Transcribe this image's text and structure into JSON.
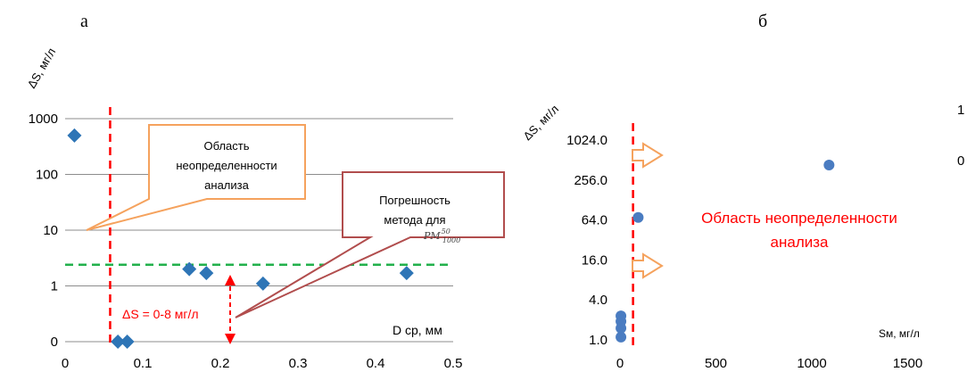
{
  "panels": {
    "a": "а",
    "b": "б"
  },
  "chart_data": [
    {
      "type": "scatter",
      "panel": "а",
      "xlabel": "D ср, мм",
      "ylabel": "ΔS, мг/л",
      "x_ticks": [
        "0",
        "0.1",
        "0.2",
        "0.3",
        "0.4",
        "0.5"
      ],
      "y_ticks": [
        "0",
        "1",
        "10",
        "100",
        "1000"
      ],
      "xlim": [
        0,
        0.5
      ],
      "y_scale": "log",
      "grid": "horizontal",
      "marker": "diamond",
      "color": "#2e75b6",
      "points": [
        {
          "x": 0.012,
          "y": 500
        },
        {
          "x": 0.068,
          "y": 0.1
        },
        {
          "x": 0.08,
          "y": 0.1
        },
        {
          "x": 0.16,
          "y": 2.0
        },
        {
          "x": 0.182,
          "y": 1.7
        },
        {
          "x": 0.255,
          "y": 1.1
        },
        {
          "x": 0.44,
          "y": 1.7
        }
      ],
      "vline_x": 0.058,
      "hline_y": 2.4,
      "callout_orange": [
        "Область",
        "неопределенности",
        "анализа"
      ],
      "callout_red": [
        "Погрешность",
        "метода для"
      ],
      "formula": {
        "base": "PM",
        "sup": "50",
        "sub": "1000"
      },
      "range_label": "ΔS = 0-8 мг/л"
    },
    {
      "type": "scatter",
      "panel": "б",
      "xlabel": "Sм, мг/л",
      "ylabel": "ΔS, мг/л",
      "x_ticks": [
        "0",
        "500",
        "1000",
        "1500"
      ],
      "y_ticks": [
        "1.0",
        "4.0",
        "16.0",
        "64.0",
        "256.0",
        "1024.0"
      ],
      "xlim": [
        0,
        1600
      ],
      "y_scale": "log4",
      "grid": "none",
      "marker": "circle",
      "color": "#4a7cc1",
      "points": [
        {
          "x": 5,
          "y": 1.1
        },
        {
          "x": 5,
          "y": 1.5
        },
        {
          "x": 5,
          "y": 1.9
        },
        {
          "x": 5,
          "y": 2.3
        },
        {
          "x": 95,
          "y": 70
        },
        {
          "x": 1090,
          "y": 430
        }
      ],
      "vline_x": 68,
      "region_label": [
        "Область неопределенности",
        "анализа"
      ],
      "cropped_right_text": [
        "1",
        "0"
      ]
    }
  ]
}
